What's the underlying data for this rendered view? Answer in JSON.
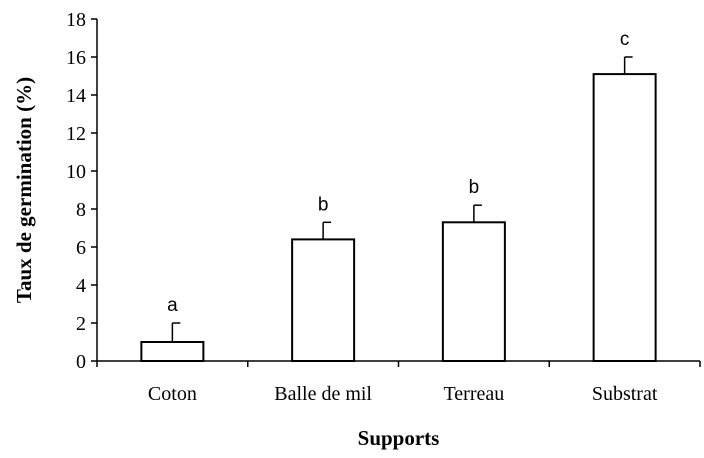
{
  "chart_data": {
    "type": "bar",
    "categories": [
      "Coton",
      "Balle de mil",
      "Terreau",
      "Substrat"
    ],
    "values": [
      1.0,
      6.4,
      7.3,
      15.1
    ],
    "errors": [
      1.0,
      0.9,
      0.9,
      0.9
    ],
    "significance_letters": [
      "a",
      "b",
      "b",
      "c"
    ],
    "xlabel": "Supports",
    "ylabel": "Taux de germination  (%)",
    "ylim": [
      0,
      18
    ],
    "yticks": [
      0,
      2,
      4,
      6,
      8,
      10,
      12,
      14,
      16,
      18
    ],
    "grid": false,
    "bar_fill": "#ffffff",
    "bar_stroke": "#000000"
  }
}
